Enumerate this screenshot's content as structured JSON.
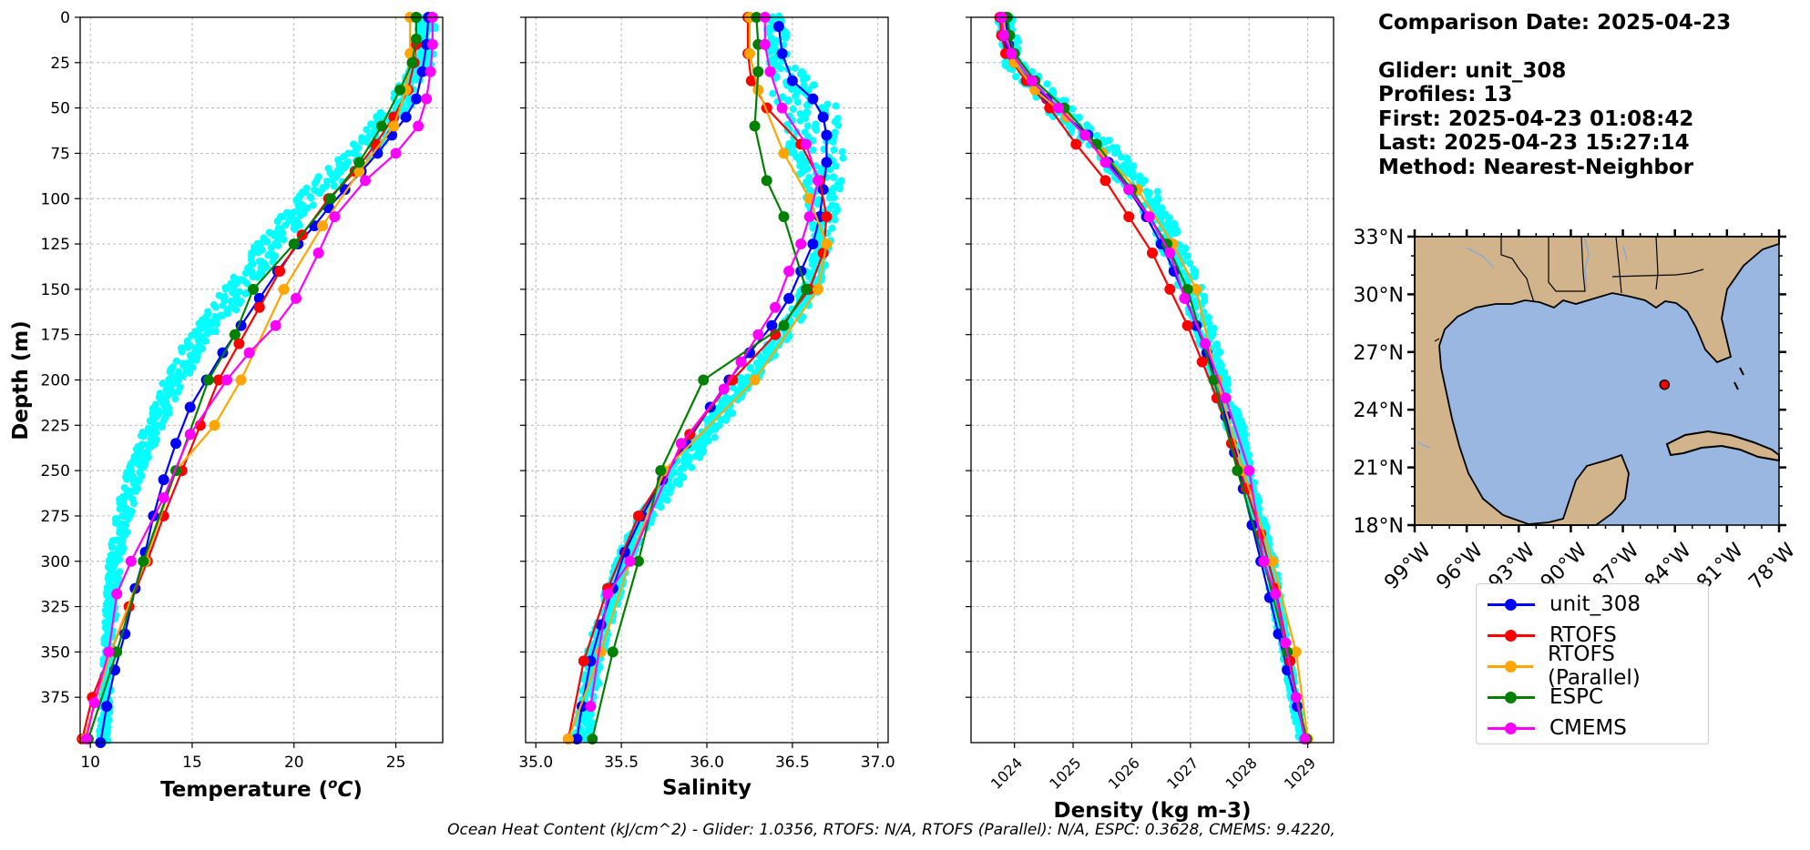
{
  "chart_data": [
    {
      "type": "line",
      "xlabel": "Temperature (°C)",
      "ylabel": "Depth (m)",
      "xlim": [
        9.5,
        27.3
      ],
      "ylim": [
        400,
        0
      ],
      "xticks": [
        "10",
        "15",
        "20",
        "25"
      ],
      "yticks": [
        "0",
        "25",
        "50",
        "75",
        "100",
        "125",
        "150",
        "175",
        "200",
        "225",
        "250",
        "275",
        "300",
        "325",
        "350",
        "375"
      ],
      "grid": true,
      "glider_cloud": {
        "name": "unit_308",
        "x_min": [
          26.0,
          25.9,
          24.4,
          22.4,
          20.1,
          18.2,
          16.5,
          14.8,
          13.6,
          12.7,
          11.8,
          11.2,
          10.9,
          10.6,
          10.4
        ],
        "x_max": [
          27.0,
          26.9,
          25.7,
          24.2,
          21.3,
          19.6,
          18.0,
          16.1,
          14.7,
          13.6,
          12.6,
          12.0,
          11.5,
          11.1,
          10.9
        ],
        "depth": [
          0,
          25,
          50,
          75,
          100,
          125,
          150,
          175,
          200,
          225,
          250,
          275,
          300,
          350,
          400
        ]
      },
      "series": [
        {
          "name": "unit_308",
          "x": [
            26.6,
            26.5,
            26.3,
            26.0,
            25.5,
            24.8,
            24.1,
            23.3,
            22.5,
            21.7,
            21.0,
            20.2,
            19.2,
            18.3,
            17.4,
            16.5,
            15.7,
            14.9,
            14.2,
            13.6,
            13.1,
            12.7,
            12.2,
            11.7,
            11.2,
            10.8,
            10.5
          ],
          "y": [
            0,
            15,
            30,
            45,
            55,
            65,
            75,
            85,
            95,
            105,
            115,
            125,
            140,
            155,
            170,
            185,
            200,
            215,
            235,
            255,
            275,
            295,
            315,
            340,
            360,
            380,
            400
          ]
        },
        {
          "name": "RTOFS",
          "x": [
            26.0,
            26.0,
            25.9,
            25.6,
            24.9,
            24.0,
            23.0,
            21.7,
            20.4,
            19.3,
            18.3,
            17.3,
            16.3,
            15.4,
            14.5,
            13.6,
            12.8,
            11.9,
            11.0,
            10.1,
            9.6
          ],
          "y": [
            0,
            15,
            25,
            40,
            55,
            70,
            85,
            100,
            120,
            140,
            160,
            180,
            200,
            225,
            250,
            275,
            300,
            325,
            350,
            375,
            398
          ]
        },
        {
          "name": "RTOFS (Parallel)",
          "x": [
            25.7,
            25.7,
            25.5,
            24.9,
            23.2,
            21.4,
            19.5,
            17.4,
            16.1,
            14.2,
            12.7,
            11.0,
            9.7
          ],
          "y": [
            0,
            20,
            40,
            60,
            85,
            115,
            150,
            200,
            225,
            250,
            300,
            350,
            398
          ]
        },
        {
          "name": "ESPC",
          "x": [
            26.0,
            26.0,
            25.8,
            25.2,
            24.3,
            23.2,
            21.8,
            20.0,
            18.0,
            17.1,
            15.8,
            14.2,
            12.6,
            11.3,
            9.9
          ],
          "y": [
            0,
            12,
            25,
            40,
            60,
            80,
            100,
            125,
            150,
            175,
            200,
            250,
            300,
            350,
            398
          ]
        },
        {
          "name": "CMEMS",
          "x": [
            26.8,
            26.8,
            26.7,
            26.5,
            26.1,
            25.0,
            23.5,
            22.0,
            21.2,
            20.1,
            19.1,
            17.8,
            16.7,
            14.9,
            13.6,
            12.0,
            11.3,
            10.9,
            10.2,
            9.8
          ],
          "y": [
            0,
            15,
            30,
            45,
            60,
            75,
            90,
            110,
            130,
            155,
            170,
            185,
            200,
            230,
            265,
            300,
            318,
            350,
            378,
            398
          ]
        }
      ]
    },
    {
      "type": "line",
      "xlabel": "Salinity",
      "xlim": [
        34.94,
        37.06
      ],
      "ylim": [
        400,
        0
      ],
      "xticks": [
        "35.0",
        "35.5",
        "36.0",
        "36.5",
        "37.0"
      ],
      "grid": true,
      "glider_cloud": {
        "name": "unit_308",
        "x_min": [
          36.35,
          36.35,
          36.4,
          36.48,
          36.58,
          36.63,
          36.55,
          36.4,
          36.17,
          35.97,
          35.78,
          35.6,
          35.45,
          35.3,
          35.22
        ],
        "x_max": [
          36.45,
          36.5,
          36.78,
          36.8,
          36.78,
          36.72,
          36.66,
          36.5,
          36.3,
          36.1,
          35.9,
          35.7,
          35.55,
          35.4,
          35.32
        ],
        "depth": [
          0,
          25,
          50,
          75,
          100,
          125,
          150,
          175,
          200,
          225,
          250,
          275,
          300,
          350,
          400
        ]
      },
      "series": [
        {
          "name": "unit_308",
          "x": [
            36.42,
            36.44,
            36.5,
            36.62,
            36.68,
            36.7,
            36.7,
            36.68,
            36.66,
            36.62,
            36.55,
            36.48,
            36.38,
            36.25,
            36.13,
            36.02,
            35.88,
            35.74,
            35.62,
            35.52,
            35.45,
            35.38,
            35.32,
            35.27,
            35.24
          ],
          "y": [
            5,
            20,
            35,
            45,
            55,
            65,
            80,
            95,
            110,
            125,
            140,
            155,
            170,
            185,
            200,
            215,
            235,
            255,
            275,
            295,
            315,
            335,
            355,
            380,
            398
          ]
        },
        {
          "name": "RTOFS",
          "x": [
            36.24,
            36.24,
            36.26,
            36.35,
            36.55,
            36.66,
            36.7,
            36.68,
            36.6,
            36.4,
            36.15,
            35.9,
            35.6,
            35.42,
            35.28,
            35.19
          ],
          "y": [
            0,
            20,
            35,
            50,
            70,
            90,
            110,
            130,
            150,
            175,
            200,
            230,
            275,
            315,
            355,
            398
          ]
        },
        {
          "name": "RTOFS (Parallel)",
          "x": [
            36.25,
            36.25,
            36.3,
            36.45,
            36.6,
            36.7,
            36.65,
            36.28,
            35.75,
            35.55,
            35.38,
            35.19
          ],
          "y": [
            0,
            20,
            40,
            75,
            100,
            125,
            150,
            200,
            250,
            300,
            350,
            398
          ]
        },
        {
          "name": "ESPC",
          "x": [
            36.29,
            36.3,
            36.3,
            36.28,
            36.35,
            36.45,
            36.58,
            36.45,
            35.98,
            35.73,
            35.6,
            35.45,
            35.33
          ],
          "y": [
            0,
            15,
            30,
            60,
            90,
            110,
            150,
            170,
            200,
            250,
            300,
            350,
            398
          ]
        },
        {
          "name": "CMEMS",
          "x": [
            36.34,
            36.34,
            36.37,
            36.44,
            36.58,
            36.65,
            36.6,
            36.55,
            36.48,
            36.4,
            36.3,
            36.2,
            36.1,
            35.85,
            35.55,
            35.42,
            35.32
          ],
          "y": [
            0,
            15,
            30,
            50,
            70,
            90,
            110,
            125,
            140,
            160,
            175,
            190,
            205,
            235,
            300,
            318,
            380
          ]
        }
      ]
    },
    {
      "type": "line",
      "xlabel": "Density (kg m-3)",
      "xlim": [
        1023.26,
        1029.44
      ],
      "ylim": [
        400,
        0
      ],
      "xticks": [
        "1024",
        "1025",
        "1026",
        "1027",
        "1028",
        "1029"
      ],
      "grid": true,
      "glider_cloud": {
        "name": "unit_308",
        "x_min": [
          1023.7,
          1023.8,
          1024.45,
          1025.35,
          1026.0,
          1026.45,
          1026.8,
          1027.1,
          1027.35,
          1027.6,
          1027.85,
          1028.05,
          1028.25,
          1028.55,
          1028.85
        ],
        "x_max": [
          1023.95,
          1024.2,
          1025.0,
          1025.9,
          1026.55,
          1026.9,
          1027.2,
          1027.45,
          1027.65,
          1027.9,
          1028.05,
          1028.25,
          1028.45,
          1028.7,
          1028.95
        ],
        "depth": [
          0,
          25,
          50,
          75,
          100,
          125,
          150,
          175,
          200,
          225,
          250,
          275,
          300,
          350,
          400
        ]
      },
      "series": [
        {
          "name": "unit_308",
          "x": [
            1023.85,
            1023.9,
            1024.0,
            1024.25,
            1024.55,
            1024.9,
            1025.25,
            1025.6,
            1025.95,
            1026.25,
            1026.5,
            1026.72,
            1026.92,
            1027.1,
            1027.28,
            1027.45,
            1027.6,
            1027.75,
            1027.9,
            1028.05,
            1028.2,
            1028.35,
            1028.5,
            1028.65,
            1028.82,
            1028.97
          ],
          "y": [
            0,
            15,
            25,
            35,
            45,
            55,
            65,
            80,
            95,
            110,
            125,
            140,
            155,
            170,
            185,
            200,
            220,
            240,
            260,
            280,
            300,
            320,
            340,
            360,
            380,
            398
          ]
        },
        {
          "name": "RTOFS",
          "x": [
            1023.75,
            1023.78,
            1023.85,
            1024.2,
            1024.6,
            1025.05,
            1025.55,
            1025.95,
            1026.35,
            1026.65,
            1026.95,
            1027.2,
            1027.45,
            1027.7,
            1027.95,
            1028.2,
            1028.45,
            1028.7,
            1028.95
          ],
          "y": [
            0,
            10,
            20,
            35,
            50,
            70,
            90,
            110,
            130,
            150,
            170,
            190,
            210,
            235,
            260,
            285,
            315,
            355,
            398
          ]
        },
        {
          "name": "RTOFS (Parallel)",
          "x": [
            1023.8,
            1023.85,
            1024.0,
            1024.35,
            1024.9,
            1025.5,
            1026.1,
            1026.7,
            1027.1,
            1027.45,
            1027.9,
            1028.4,
            1028.8,
            1029.0
          ],
          "y": [
            0,
            10,
            25,
            40,
            55,
            75,
            95,
            125,
            150,
            200,
            250,
            300,
            350,
            398
          ]
        },
        {
          "name": "ESPC",
          "x": [
            1023.88,
            1023.92,
            1024.0,
            1024.35,
            1024.85,
            1025.4,
            1026.0,
            1026.6,
            1026.95,
            1027.4,
            1027.8,
            1028.25,
            1028.65,
            1028.98
          ],
          "y": [
            0,
            10,
            20,
            35,
            50,
            70,
            95,
            125,
            150,
            200,
            250,
            300,
            350,
            398
          ]
        },
        {
          "name": "CMEMS",
          "x": [
            1023.78,
            1023.82,
            1023.95,
            1024.3,
            1024.75,
            1025.2,
            1025.55,
            1025.95,
            1026.3,
            1026.65,
            1026.9,
            1027.25,
            1027.6,
            1028.0,
            1028.25,
            1028.45,
            1028.62,
            1028.8,
            1028.95
          ],
          "y": [
            0,
            10,
            20,
            35,
            50,
            65,
            80,
            95,
            110,
            130,
            155,
            180,
            210,
            250,
            300,
            318,
            345,
            375,
            398
          ]
        }
      ]
    }
  ],
  "info": {
    "comparison_date": "Comparison Date: 2025-04-23",
    "glider": "Glider: unit_308",
    "profiles": "Profiles: 13",
    "first": "First: 2025-04-23 01:08:42",
    "last": "Last: 2025-04-23 15:27:14",
    "method": "Method: Nearest-Neighbor"
  },
  "map": {
    "lat_ticks": [
      "33°N",
      "30°N",
      "27°N",
      "24°N",
      "21°N",
      "18°N"
    ],
    "lon_ticks": [
      "99°W",
      "96°W",
      "93°W",
      "90°W",
      "87°W",
      "84°W",
      "81°W",
      "78°W"
    ],
    "extent": {
      "lon_min": -99,
      "lon_max": -78,
      "lat_min": 18,
      "lat_max": 33
    },
    "glider_position": {
      "lon": -84.6,
      "lat": 25.3
    },
    "land_color": "#d2b48c",
    "ocean_color": "#99b7e1"
  },
  "legend": [
    {
      "label": "unit_308",
      "color": "#0000ff"
    },
    {
      "label": "RTOFS",
      "color": "#ff0000"
    },
    {
      "label": "RTOFS (Parallel)",
      "color": "#ffa500"
    },
    {
      "label": "ESPC",
      "color": "#008000"
    },
    {
      "label": "CMEMS",
      "color": "#ff00ff"
    }
  ],
  "glider_cloud_color": "#00ffff",
  "footer": "Ocean Heat Content (kJ/cm^2) - Glider: 1.0356,  RTOFS: N/A,  RTOFS (Parallel): N/A,  ESPC: 0.3628,  CMEMS: 9.4220,"
}
